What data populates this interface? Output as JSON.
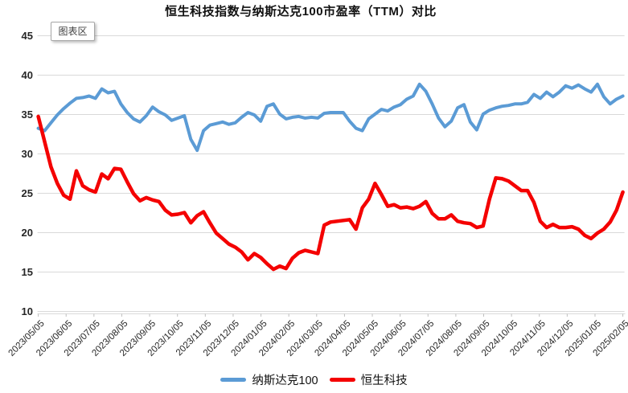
{
  "tooltip": {
    "label": "图表区"
  },
  "chart_data": {
    "type": "line",
    "title": "恒生科技指数与纳斯达克100市盈率（TTM）对比",
    "xlabel": "",
    "ylabel": "",
    "ylim": [
      10,
      45
    ],
    "y_ticks": [
      45,
      40,
      35,
      30,
      25,
      20,
      15,
      10
    ],
    "grid": true,
    "legend_position": "bottom",
    "x_frequency": "weekly points between monthly tick labels",
    "x_labels": [
      "2023/05/05",
      "2023/06/05",
      "2023/07/05",
      "2023/08/05",
      "2023/09/05",
      "2023/10/05",
      "2023/11/05",
      "2023/12/05",
      "2024/01/05",
      "2024/02/05",
      "2024/03/05",
      "2024/04/05",
      "2024/05/05",
      "2024/06/05",
      "2024/07/05",
      "2024/08/05",
      "2024/09/05",
      "2024/10/05",
      "2024/11/05",
      "2024/12/05",
      "2025/01/05",
      "2025/02/05"
    ],
    "colors": {
      "grid": "#d9d9d9",
      "axis": "#bfbfbf",
      "tick_label": "#262626",
      "title": "#111111"
    },
    "series": [
      {
        "key": "nasdaq100",
        "name": "纳斯达克100",
        "color": "#5b9bd5",
        "stroke_width": 4,
        "values": [
          33.2,
          32.9,
          33.9,
          34.9,
          35.7,
          36.4,
          37.0,
          37.1,
          37.3,
          37.0,
          38.2,
          37.7,
          37.9,
          36.3,
          35.2,
          34.4,
          34.0,
          34.8,
          35.9,
          35.3,
          34.9,
          34.2,
          34.5,
          34.8,
          31.8,
          30.4,
          32.9,
          33.6,
          33.8,
          34.0,
          33.7,
          33.9,
          34.6,
          35.2,
          34.9,
          34.1,
          36.0,
          36.3,
          35.0,
          34.4,
          34.6,
          34.7,
          34.5,
          34.6,
          34.5,
          35.1,
          35.2,
          35.2,
          35.2,
          34.1,
          33.2,
          32.9,
          34.4,
          35.0,
          35.6,
          35.4,
          35.9,
          36.2,
          36.9,
          37.3,
          38.8,
          37.9,
          36.3,
          34.5,
          33.4,
          34.1,
          35.8,
          36.2,
          34.0,
          33.0,
          35.0,
          35.5,
          35.8,
          36.0,
          36.1,
          36.3,
          36.3,
          36.5,
          37.5,
          37.0,
          37.8,
          37.2,
          37.8,
          38.6,
          38.3,
          38.7,
          38.2,
          37.8,
          38.8,
          37.2,
          36.3,
          36.9,
          37.3
        ]
      },
      {
        "key": "hstech",
        "name": "恒生科技",
        "color": "#f40000",
        "stroke_width": 4.5,
        "values": [
          34.7,
          31.5,
          28.3,
          26.2,
          24.7,
          24.2,
          27.8,
          25.9,
          25.4,
          25.1,
          27.4,
          26.8,
          28.1,
          28.0,
          26.4,
          24.9,
          24.0,
          24.4,
          24.1,
          23.9,
          22.8,
          22.2,
          22.3,
          22.5,
          21.2,
          22.1,
          22.6,
          21.2,
          19.9,
          19.2,
          18.5,
          18.1,
          17.5,
          16.5,
          17.3,
          16.8,
          16.0,
          15.3,
          15.7,
          15.4,
          16.7,
          17.4,
          17.7,
          17.5,
          17.3,
          20.9,
          21.3,
          21.4,
          21.5,
          21.6,
          20.4,
          23.1,
          24.2,
          26.2,
          24.8,
          23.3,
          23.5,
          23.1,
          23.2,
          23.0,
          23.3,
          23.9,
          22.4,
          21.7,
          21.7,
          22.2,
          21.4,
          21.2,
          21.1,
          20.6,
          20.8,
          24.2,
          26.9,
          26.8,
          26.5,
          25.9,
          25.3,
          25.3,
          23.8,
          21.4,
          20.6,
          21.0,
          20.6,
          20.6,
          20.7,
          20.4,
          19.6,
          19.2,
          19.9,
          20.4,
          21.3,
          22.8,
          25.1
        ]
      }
    ]
  }
}
